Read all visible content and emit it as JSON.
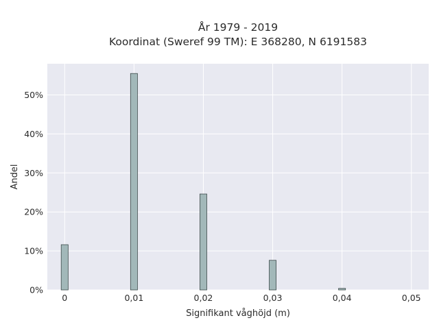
{
  "chart_data": {
    "type": "bar",
    "title_line1": "År 1979 - 2019",
    "title_line2": "Koordinat (Sweref 99 TM): E 368280, N 6191583",
    "xlabel": "Signifikant våghöjd (m)",
    "ylabel": "Andel",
    "xlim": [
      -0.0025,
      0.0525
    ],
    "ylim": [
      0,
      58
    ],
    "x_ticks": [
      0,
      0.01,
      0.02,
      0.03,
      0.04,
      0.05
    ],
    "x_tick_labels": [
      "0",
      "0,01",
      "0,02",
      "0,03",
      "0,04",
      "0,05"
    ],
    "y_ticks": [
      0,
      10,
      20,
      30,
      40,
      50
    ],
    "y_tick_labels": [
      "0%",
      "10%",
      "20%",
      "30%",
      "40%",
      "50%"
    ],
    "bar_width": 0.001,
    "bar_color": "#a2b8b9",
    "bar_edge_color": "#3d4a4a",
    "plot_bg_color": "#e8e9f1",
    "grid": true,
    "x": [
      0,
      0.01,
      0.02,
      0.03,
      0.04
    ],
    "values": [
      11.6,
      55.5,
      24.6,
      7.6,
      0.4
    ]
  }
}
